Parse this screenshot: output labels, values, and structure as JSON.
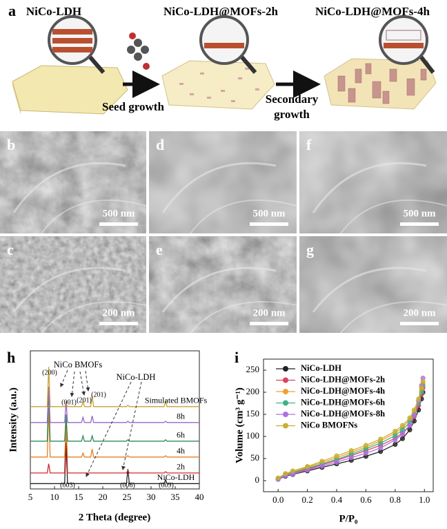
{
  "panel_a": {
    "label": "a",
    "stages": [
      "NiCo-LDH",
      "NiCo-LDH@MOFs-2h",
      "NiCo-LDH@MOFs-4h"
    ],
    "seed_step": "Seed growth",
    "secondary_step": [
      "Secondary",
      "growth"
    ]
  },
  "micrographs": [
    {
      "label": "b",
      "scale_bar": "500 nm"
    },
    {
      "label": "d",
      "scale_bar": "500 nm"
    },
    {
      "label": "f",
      "scale_bar": "500 nm"
    },
    {
      "label": "c",
      "scale_bar": "200 nm"
    },
    {
      "label": "e",
      "scale_bar": "200 nm"
    },
    {
      "label": "g",
      "scale_bar": "200 nm"
    }
  ],
  "chart_data": [
    {
      "type": "line",
      "panel_label": "h",
      "x_label": "2 Theta (degree)",
      "y_label": "Intensity (a.u.)",
      "xlim": [
        5,
        40
      ],
      "xticks": [
        5,
        10,
        15,
        20,
        25,
        30,
        35,
        40
      ],
      "ylim": [
        0,
        104
      ],
      "x": [
        5,
        8.5,
        8.8,
        9.1,
        12.1,
        12.4,
        12.7,
        15.6,
        15.9,
        16.2,
        17.5,
        17.8,
        18.1,
        24.9,
        25.2,
        25.5,
        32.7,
        33,
        33.3,
        40
      ],
      "series": [
        {
          "name": "NiCo-LDH",
          "color": "#222222",
          "values": [
            4,
            4,
            4,
            4,
            4,
            35,
            4,
            4,
            4,
            4,
            4,
            4,
            4,
            4,
            15,
            4,
            4,
            7,
            4,
            4
          ]
        },
        {
          "name": "2h",
          "color": "#d62728",
          "values": [
            12,
            12,
            19,
            12,
            12,
            50,
            12,
            12,
            12,
            12,
            12,
            12,
            12,
            12,
            14,
            12,
            12,
            13,
            12,
            12
          ]
        },
        {
          "name": "4h",
          "color": "#e67e22",
          "values": [
            24,
            24,
            61,
            24,
            24,
            46,
            24,
            24,
            27,
            24,
            24,
            30,
            24,
            24,
            25,
            24,
            24,
            25,
            24,
            24
          ]
        },
        {
          "name": "6h",
          "color": "#2e8b57",
          "values": [
            36,
            36,
            77,
            36,
            36,
            56,
            36,
            36,
            40,
            36,
            36,
            40,
            36,
            36,
            37,
            36,
            36,
            37,
            36,
            36
          ]
        },
        {
          "name": "8h",
          "color": "#9966cc",
          "values": [
            50,
            50,
            77,
            50,
            50,
            66,
            50,
            50,
            54,
            50,
            50,
            55,
            50,
            50,
            51,
            50,
            50,
            51,
            50,
            50
          ]
        },
        {
          "name": "Simulated BMOFs",
          "color": "#c8a030",
          "values": [
            62,
            62,
            92,
            62,
            62,
            64,
            62,
            62,
            66,
            62,
            62,
            70,
            62,
            62,
            63,
            62,
            62,
            66,
            62,
            62
          ]
        }
      ],
      "annotations": [
        "NiCo BMOFs",
        "(200)",
        "(001)",
        "(201)",
        "(201)",
        "NiCo-LDH",
        "(003)",
        "(006)",
        "(009)"
      ]
    },
    {
      "type": "line",
      "panel_label": "i",
      "x_label": "P/P₀",
      "y_label": "Volume (cm³ g⁻¹)",
      "xlim": [
        -0.1,
        1.06
      ],
      "xticks": [
        {
          "value": 0,
          "label": "0.0"
        },
        0.2,
        0.4,
        0.6,
        0.8,
        {
          "value": 1,
          "label": "1.0"
        }
      ],
      "ylim": [
        -25,
        275
      ],
      "yticks": [
        0,
        50,
        100,
        150,
        200,
        250
      ],
      "legend": "upper left",
      "x": [
        0.0,
        0.05,
        0.1,
        0.2,
        0.3,
        0.4,
        0.5,
        0.6,
        0.7,
        0.8,
        0.85,
        0.9,
        0.93,
        0.96,
        0.98,
        0.99
      ],
      "series": [
        {
          "name": "NiCo-LDH",
          "color": "#222222",
          "values": [
            3,
            10,
            14,
            22,
            30,
            38,
            46,
            55,
            66,
            82,
            95,
            115,
            135,
            160,
            185,
            200
          ]
        },
        {
          "name": "NiCo-LDH@MOFs-2h",
          "color": "#e0405a",
          "values": [
            4,
            12,
            17,
            26,
            36,
            46,
            57,
            68,
            80,
            96,
            108,
            125,
            145,
            170,
            195,
            210
          ]
        },
        {
          "name": "NiCo-LDH@MOFs-4h",
          "color": "#f0a030",
          "values": [
            5,
            14,
            20,
            30,
            41,
            52,
            64,
            76,
            90,
            108,
            120,
            138,
            155,
            180,
            205,
            220
          ]
        },
        {
          "name": "NiCo-LDH@MOFs-6h",
          "color": "#3cb38a",
          "values": [
            4,
            13,
            18,
            28,
            38,
            48,
            60,
            72,
            85,
            102,
            115,
            132,
            150,
            175,
            200,
            215
          ]
        },
        {
          "name": "NiCo-LDH@MOFs-8h",
          "color": "#b070e0",
          "values": [
            3,
            11,
            15,
            24,
            33,
            42,
            52,
            62,
            74,
            92,
            105,
            125,
            148,
            180,
            215,
            232
          ]
        },
        {
          "name": "NiCo BMOFNs",
          "color": "#c8b030",
          "values": [
            6,
            16,
            22,
            32,
            44,
            56,
            68,
            80,
            94,
            112,
            125,
            142,
            160,
            185,
            210,
            225
          ]
        }
      ]
    }
  ]
}
